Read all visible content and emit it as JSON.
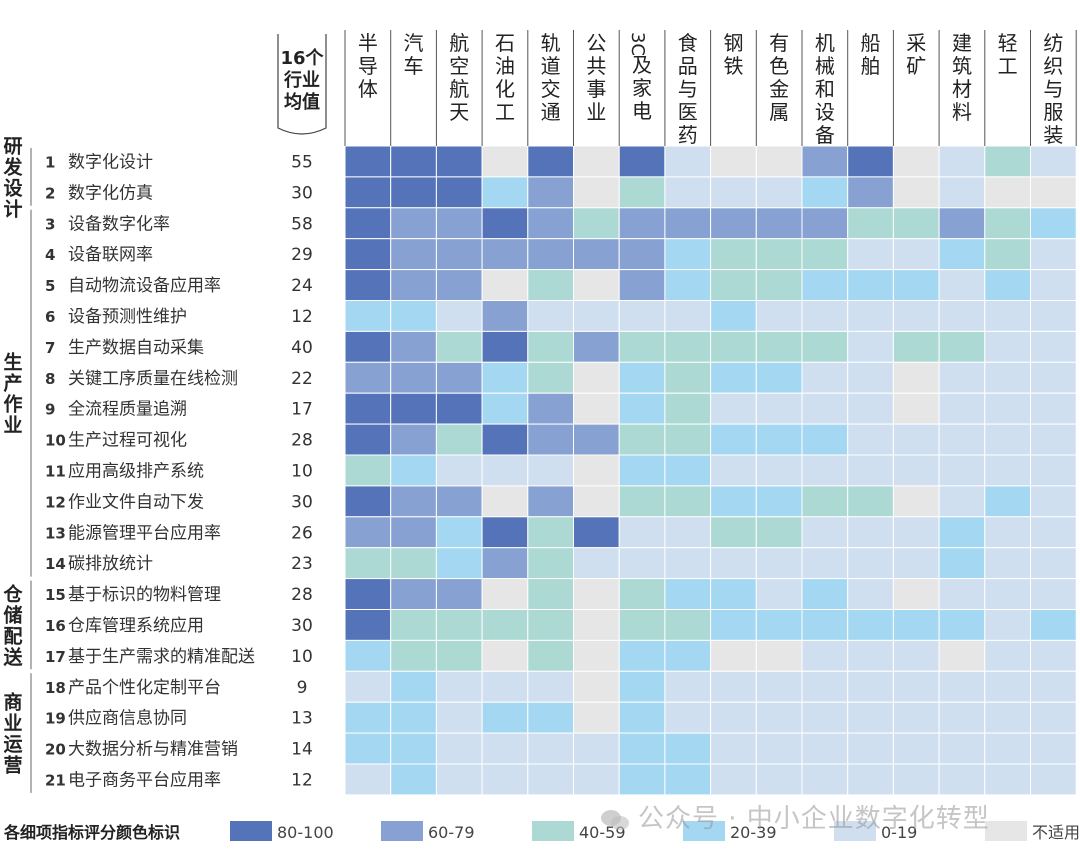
{
  "chart_data": {
    "type": "heatmap",
    "title": "各细项指标评分颜色标识",
    "avg_header": [
      "16个",
      "行业",
      "均值"
    ],
    "industries": [
      "半导体",
      "汽车",
      "航空航天",
      "石油化工",
      "轨道交通",
      "公共事业",
      "3C及家电",
      "食品与医药",
      "钢铁",
      "有色金属",
      "机械和设备",
      "船舶",
      "采矿",
      "建筑材料",
      "轻工",
      "纺织与服装"
    ],
    "categories": [
      {
        "name": "研发设计",
        "rows": [
          1,
          2
        ]
      },
      {
        "name": "生产作业",
        "rows": [
          3,
          14
        ]
      },
      {
        "name": "仓储配送",
        "rows": [
          15,
          17
        ]
      },
      {
        "name": "商业运营",
        "rows": [
          18,
          21
        ]
      }
    ],
    "indicators": [
      {
        "no": "1",
        "name": "数字化设计",
        "avg": "55"
      },
      {
        "no": "2",
        "name": "数字化仿真",
        "avg": "30"
      },
      {
        "no": "3",
        "name": "设备数字化率",
        "avg": "58"
      },
      {
        "no": "4",
        "name": "设备联网率",
        "avg": "29"
      },
      {
        "no": "5",
        "name": "自动物流设备应用率",
        "avg": "24"
      },
      {
        "no": "6",
        "name": "设备预测性维护",
        "avg": "12"
      },
      {
        "no": "7",
        "name": "生产数据自动采集",
        "avg": "40"
      },
      {
        "no": "8",
        "name": "关键工序质量在线检测",
        "avg": "22"
      },
      {
        "no": "9",
        "name": "全流程质量追溯",
        "avg": "17"
      },
      {
        "no": "10",
        "name": "生产过程可视化",
        "avg": "28"
      },
      {
        "no": "11",
        "name": "应用高级排产系统",
        "avg": "10"
      },
      {
        "no": "12",
        "name": "作业文件自动下发",
        "avg": "30"
      },
      {
        "no": "13",
        "name": "能源管理平台应用率",
        "avg": "26"
      },
      {
        "no": "14",
        "name": "碳排放统计",
        "avg": "23"
      },
      {
        "no": "15",
        "name": "基于标识的物料管理",
        "avg": "28"
      },
      {
        "no": "16",
        "name": "仓库管理系统应用",
        "avg": "30"
      },
      {
        "no": "17",
        "name": "基于生产需求的精准配送",
        "avg": "10"
      },
      {
        "no": "18",
        "name": "产品个性化定制平台",
        "avg": "9"
      },
      {
        "no": "19",
        "name": "供应商信息协同",
        "avg": "13"
      },
      {
        "no": "20",
        "name": "大数据分析与精准营销",
        "avg": "14"
      },
      {
        "no": "21",
        "name": "电子商务平台应用率",
        "avg": "12"
      }
    ],
    "legend": [
      {
        "label": "80-100",
        "color": "#5573b8"
      },
      {
        "label": "60-79",
        "color": "#87a2d2"
      },
      {
        "label": "40-59",
        "color": "#acd9d3"
      },
      {
        "label": "20-39",
        "color": "#a3d7f2"
      },
      {
        "label": "0-19",
        "color": "#cfdff0"
      },
      {
        "label": "不适用",
        "color": "#e6e6e6"
      }
    ],
    "grade_codes": "0 = 80-100, 1 = 60-79, 2 = 40-59, 3 = 20-39, 4 = 0-19, 5 = 不适用",
    "grid": [
      [
        0,
        0,
        0,
        5,
        0,
        5,
        0,
        4,
        5,
        5,
        1,
        0,
        5,
        4,
        2,
        4
      ],
      [
        0,
        0,
        0,
        3,
        1,
        5,
        2,
        4,
        4,
        4,
        3,
        1,
        5,
        4,
        5,
        5
      ],
      [
        0,
        1,
        1,
        0,
        1,
        2,
        1,
        1,
        1,
        1,
        1,
        2,
        2,
        1,
        2,
        3
      ],
      [
        0,
        1,
        1,
        1,
        1,
        1,
        1,
        3,
        2,
        2,
        2,
        4,
        4,
        3,
        2,
        4
      ],
      [
        0,
        1,
        1,
        5,
        2,
        5,
        1,
        3,
        2,
        2,
        3,
        3,
        3,
        4,
        3,
        4
      ],
      [
        3,
        3,
        4,
        1,
        4,
        4,
        4,
        4,
        3,
        4,
        4,
        4,
        4,
        4,
        4,
        4
      ],
      [
        0,
        1,
        2,
        0,
        2,
        1,
        2,
        2,
        2,
        2,
        2,
        4,
        2,
        2,
        4,
        4
      ],
      [
        1,
        1,
        1,
        3,
        2,
        5,
        3,
        2,
        3,
        3,
        4,
        4,
        5,
        4,
        4,
        4
      ],
      [
        0,
        0,
        0,
        3,
        1,
        5,
        3,
        2,
        4,
        4,
        4,
        4,
        5,
        4,
        4,
        4
      ],
      [
        0,
        1,
        2,
        0,
        1,
        1,
        2,
        2,
        3,
        3,
        3,
        4,
        4,
        4,
        4,
        4
      ],
      [
        2,
        3,
        4,
        4,
        4,
        5,
        3,
        3,
        4,
        4,
        4,
        4,
        4,
        4,
        4,
        4
      ],
      [
        0,
        1,
        1,
        5,
        1,
        5,
        2,
        2,
        3,
        3,
        2,
        2,
        5,
        4,
        3,
        4
      ],
      [
        1,
        1,
        3,
        0,
        2,
        0,
        4,
        4,
        2,
        2,
        4,
        4,
        4,
        3,
        4,
        4
      ],
      [
        2,
        2,
        3,
        1,
        2,
        4,
        4,
        4,
        4,
        4,
        4,
        4,
        4,
        3,
        4,
        4
      ],
      [
        0,
        1,
        1,
        5,
        2,
        5,
        2,
        3,
        3,
        4,
        3,
        4,
        5,
        4,
        4,
        4
      ],
      [
        0,
        2,
        2,
        2,
        2,
        5,
        2,
        2,
        3,
        3,
        3,
        3,
        3,
        3,
        4,
        3
      ],
      [
        3,
        2,
        2,
        5,
        2,
        5,
        3,
        3,
        5,
        5,
        4,
        4,
        4,
        5,
        4,
        4
      ],
      [
        4,
        3,
        4,
        4,
        4,
        5,
        3,
        4,
        4,
        4,
        4,
        4,
        4,
        4,
        4,
        4
      ],
      [
        3,
        3,
        4,
        3,
        3,
        5,
        3,
        4,
        4,
        4,
        4,
        4,
        4,
        4,
        4,
        4
      ],
      [
        3,
        3,
        4,
        4,
        4,
        4,
        3,
        3,
        4,
        4,
        4,
        4,
        4,
        4,
        4,
        4
      ],
      [
        4,
        3,
        4,
        4,
        4,
        4,
        3,
        3,
        4,
        4,
        4,
        4,
        4,
        4,
        4,
        4
      ]
    ]
  },
  "watermark": "公众号 · 中小企业数字化转型"
}
